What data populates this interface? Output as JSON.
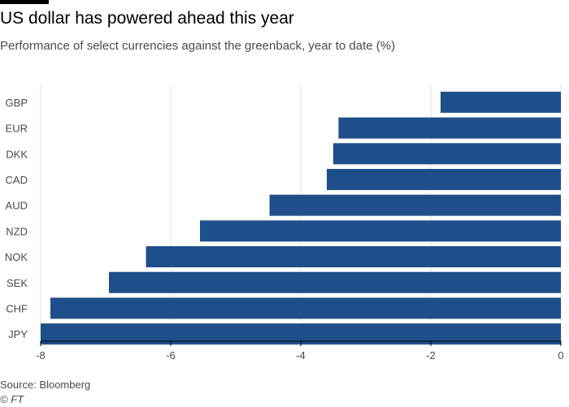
{
  "header": {
    "title": "US dollar has powered ahead this year",
    "subtitle": "Performance of select currencies against the greenback, year to date (%)"
  },
  "footer": {
    "source": "Source: Bloomberg",
    "copyright": "© FT"
  },
  "colors": {
    "bar": "#1f4f8b",
    "grid": "#e6e1dc",
    "axis": "#000000",
    "text": "#4a4a4a"
  },
  "chart_data": {
    "type": "bar",
    "orientation": "horizontal",
    "title": "US dollar has powered ahead this year",
    "subtitle": "Performance of select currencies against the greenback, year to date (%)",
    "xlabel": "",
    "ylabel": "",
    "categories": [
      "GBP",
      "EUR",
      "DKK",
      "CAD",
      "AUD",
      "NZD",
      "NOK",
      "SEK",
      "CHF",
      "JPY"
    ],
    "values": [
      -1.85,
      -3.42,
      -3.5,
      -3.6,
      -4.48,
      -5.55,
      -6.38,
      -6.95,
      -7.85,
      -8.0
    ],
    "xlim": [
      -8,
      0
    ],
    "xticks": [
      -8,
      -6,
      -4,
      -2,
      0
    ],
    "xtick_labels": [
      "-8",
      "-6",
      "-4",
      "-2",
      "0"
    ],
    "grid": true,
    "legend": "none"
  }
}
